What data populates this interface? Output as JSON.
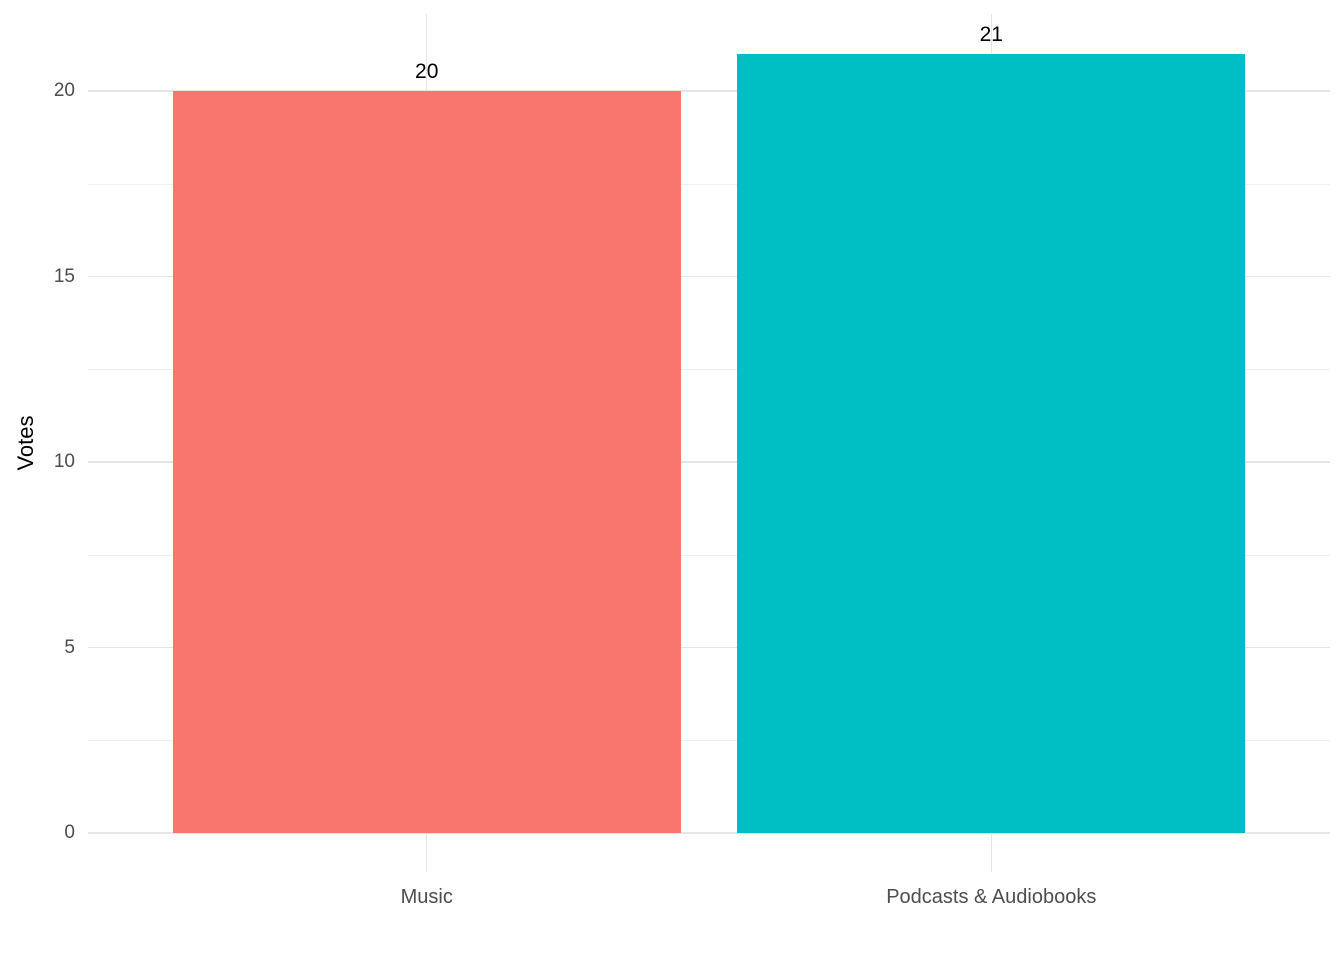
{
  "chart_data": {
    "type": "bar",
    "categories": [
      "Music",
      "Podcasts & Audiobooks"
    ],
    "values": [
      20,
      21
    ],
    "bar_value_labels": [
      "20",
      "21"
    ],
    "bar_colors": [
      "#F8766D",
      "#00BFC4"
    ],
    "title": "",
    "xlabel": "",
    "ylabel": "Votes",
    "y_ticks": [
      0,
      5,
      10,
      15,
      20
    ],
    "y_tick_labels": [
      "0",
      "5",
      "10",
      "15",
      "20"
    ],
    "y_minor_ticks": [
      2.5,
      7.5,
      12.5,
      17.5
    ],
    "ylim": [
      -1.05,
      22.05
    ],
    "grid": "major-and-minor",
    "legend": "none"
  },
  "theme": {
    "background_color": "#FFFFFF",
    "grid_major_color": "#E5E5E5",
    "grid_minor_color": "#F0F0F0",
    "axis_text_color": "#4D4D4D",
    "axis_title_color": "#000000",
    "bar_label_color": "#000000"
  }
}
